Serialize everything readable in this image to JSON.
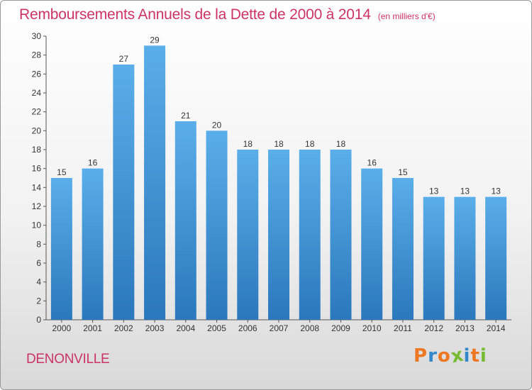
{
  "chart_data": {
    "type": "bar",
    "title": "Remboursements Annuels de la Dette de 2000 à 2014",
    "subtitle": "(en milliers d'€)",
    "xlabel": "",
    "ylabel": "",
    "categories": [
      "2000",
      "2001",
      "2002",
      "2003",
      "2004",
      "2005",
      "2006",
      "2007",
      "2008",
      "2009",
      "2010",
      "2011",
      "2012",
      "2013",
      "2014"
    ],
    "values": [
      15,
      16,
      27,
      29,
      21,
      20,
      18,
      18,
      18,
      18,
      16,
      15,
      13,
      13,
      13
    ],
    "ylim": [
      0,
      30
    ],
    "yticks": [
      0,
      2,
      4,
      6,
      8,
      10,
      12,
      14,
      16,
      18,
      20,
      22,
      24,
      26,
      28,
      30
    ],
    "grid": false,
    "legend": "none",
    "bar_color_top": "#5aaee9",
    "bar_color_bottom": "#2b78bd",
    "label_color": "#cc3366"
  },
  "footer": {
    "commune": "DENONVILLE",
    "brand": "Proxiti",
    "brand_colors": [
      "#ee7722",
      "#3388cc",
      "#ee7722",
      "#77bb33",
      "#3388cc",
      "#ee7722",
      "#77bb33"
    ]
  }
}
